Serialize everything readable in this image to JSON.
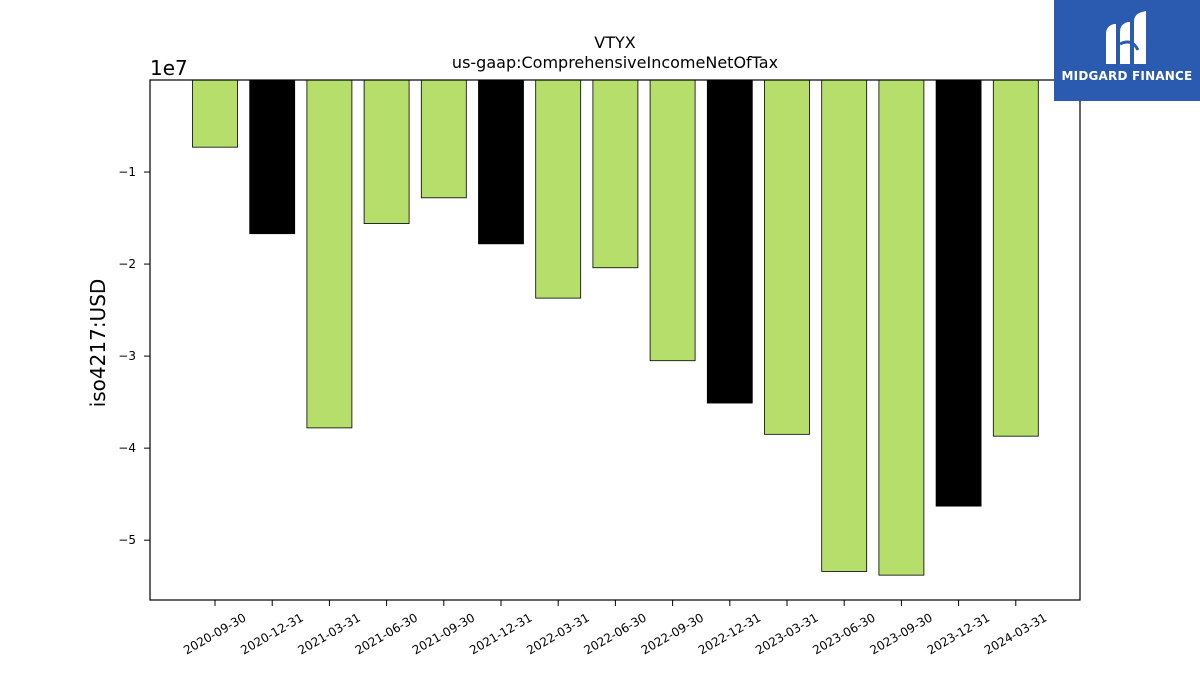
{
  "chart_data": {
    "type": "bar",
    "title": "VTYX",
    "subtitle": "us-gaap:ComprehensiveIncomeNetOfTax",
    "ylabel": "iso4217:USD",
    "xlabel": "",
    "offset_text": "1e7",
    "categories": [
      "2020-09-30",
      "2020-12-31",
      "2021-03-31",
      "2021-06-30",
      "2021-09-30",
      "2021-12-31",
      "2022-03-31",
      "2022-06-30",
      "2022-09-30",
      "2022-12-31",
      "2023-03-31",
      "2023-06-30",
      "2023-09-30",
      "2023-12-31",
      "2024-03-31"
    ],
    "values": [
      -7300000,
      -16700000,
      -37800000,
      -15600000,
      -12800000,
      -17800000,
      -23700000,
      -20400000,
      -30500000,
      -35100000,
      -38500000,
      -53400000,
      -53800000,
      -46300000,
      -38700000
    ],
    "bar_colors": [
      "#b5de6b",
      "#000000",
      "#b5de6b",
      "#b5de6b",
      "#b5de6b",
      "#000000",
      "#b5de6b",
      "#b5de6b",
      "#b5de6b",
      "#000000",
      "#b5de6b",
      "#b5de6b",
      "#b5de6b",
      "#000000",
      "#b5de6b"
    ],
    "yticks": [
      -10000000,
      -20000000,
      -30000000,
      -40000000,
      -50000000
    ],
    "ytick_labels": [
      "−1",
      "−2",
      "−3",
      "−4",
      "−5"
    ],
    "ylim": [
      -56500000,
      0
    ],
    "grid": false,
    "legend": "none"
  },
  "logo": {
    "text": "MIDGARD FINANCE",
    "background": "#2b5bb0"
  }
}
